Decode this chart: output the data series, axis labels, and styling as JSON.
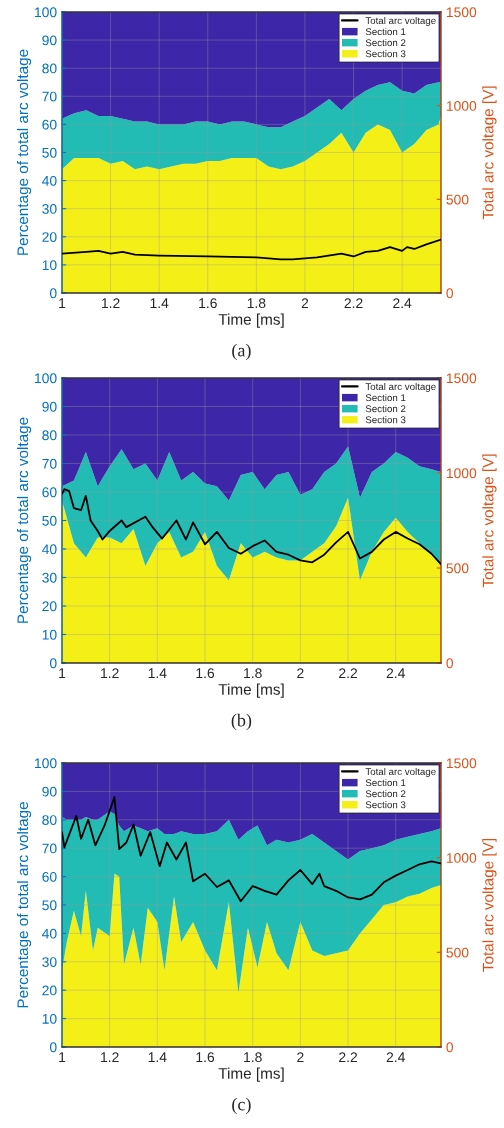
{
  "chart_data": [
    {
      "type": "area",
      "stacked": true,
      "xlabel": "Time [ms]",
      "ylabel": "Percentage of total arc voltage",
      "y2label": "Total arc voltage [V]",
      "annotations": [
        "(a)"
      ],
      "x": [
        1.0,
        1.05,
        1.1,
        1.15,
        1.2,
        1.25,
        1.3,
        1.35,
        1.4,
        1.45,
        1.5,
        1.55,
        1.6,
        1.65,
        1.7,
        1.75,
        1.8,
        1.85,
        1.9,
        1.95,
        2.0,
        2.05,
        2.1,
        2.15,
        2.2,
        2.25,
        2.3,
        2.35,
        2.4,
        2.45,
        2.5,
        2.55,
        2.56
      ],
      "xlim": [
        1,
        2.56
      ],
      "xticks": [
        1,
        1.2,
        1.4,
        1.6,
        1.8,
        2,
        2.2,
        2.4
      ],
      "ylim": [
        0,
        100
      ],
      "yticks": [
        0,
        10,
        20,
        30,
        40,
        50,
        60,
        70,
        80,
        90,
        100
      ],
      "y2lim": [
        0,
        1500
      ],
      "y2ticks": [
        0,
        500,
        1000,
        1500
      ],
      "grid": true,
      "legend": "top right",
      "series": [
        {
          "name": "Section 3",
          "color": "#f5ef18",
          "values": [
            44,
            48,
            48,
            48,
            46,
            47,
            44,
            45,
            44,
            45,
            46,
            46,
            47,
            47,
            48,
            48,
            48,
            45,
            44,
            45,
            47,
            50,
            53,
            57,
            50,
            57,
            60,
            58,
            50,
            53,
            58,
            60,
            63
          ]
        },
        {
          "name": "Section 2",
          "color": "#22bcb4",
          "values": [
            18,
            16,
            17,
            15,
            17,
            15,
            17,
            16,
            16,
            15,
            14,
            15,
            14,
            13,
            13,
            13,
            12,
            14,
            15,
            16,
            16,
            16,
            16,
            8,
            19,
            15,
            14,
            17,
            22,
            18,
            16,
            15,
            12
          ]
        },
        {
          "name": "Section 1",
          "color": "#3e26a8",
          "values": [
            38,
            36,
            35,
            37,
            37,
            38,
            39,
            39,
            40,
            40,
            40,
            39,
            39,
            40,
            39,
            39,
            40,
            41,
            41,
            39,
            37,
            34,
            31,
            35,
            31,
            28,
            26,
            25,
            28,
            29,
            26,
            25,
            25
          ]
        },
        {
          "name": "Total arc voltage",
          "type": "line",
          "axis": "y2",
          "color": "#000000",
          "x": [
            1,
            1.1,
            1.15,
            1.2,
            1.25,
            1.3,
            1.4,
            1.6,
            1.8,
            1.9,
            1.95,
            2.05,
            2.15,
            2.2,
            2.25,
            2.3,
            2.35,
            2.4,
            2.42,
            2.45,
            2.5,
            2.56
          ],
          "values": [
            210,
            220,
            225,
            210,
            220,
            205,
            200,
            195,
            190,
            180,
            180,
            190,
            210,
            195,
            220,
            225,
            245,
            225,
            245,
            235,
            260,
            285
          ]
        }
      ]
    },
    {
      "type": "area",
      "stacked": true,
      "xlabel": "Time [ms]",
      "ylabel": "Percentage of total arc voltage",
      "y2label": "Total arc voltage [V]",
      "annotations": [
        "(b)"
      ],
      "x": [
        1.0,
        1.05,
        1.1,
        1.15,
        1.2,
        1.25,
        1.3,
        1.35,
        1.4,
        1.45,
        1.5,
        1.55,
        1.6,
        1.65,
        1.7,
        1.75,
        1.8,
        1.85,
        1.9,
        1.95,
        2.0,
        2.05,
        2.1,
        2.15,
        2.2,
        2.25,
        2.3,
        2.35,
        2.4,
        2.45,
        2.5,
        2.55,
        2.59
      ],
      "xlim": [
        1,
        2.59
      ],
      "xticks": [
        1,
        1.2,
        1.4,
        1.6,
        1.8,
        2,
        2.2,
        2.4
      ],
      "ylim": [
        0,
        100
      ],
      "yticks": [
        0,
        10,
        20,
        30,
        40,
        50,
        60,
        70,
        80,
        90,
        100
      ],
      "y2lim": [
        0,
        1500
      ],
      "y2ticks": [
        0,
        500,
        1000,
        1500
      ],
      "grid": true,
      "legend": "top right",
      "series": [
        {
          "name": "Section 3",
          "color": "#f5ef18",
          "values": [
            57,
            42,
            37,
            44,
            44,
            42,
            47,
            34,
            42,
            46,
            37,
            39,
            46,
            34,
            29,
            42,
            37,
            39,
            37,
            36,
            36,
            39,
            42,
            48,
            58,
            29,
            39,
            46,
            51,
            46,
            42,
            38,
            34
          ]
        },
        {
          "name": "Section 2",
          "color": "#22bcb4",
          "values": [
            5,
            22,
            37,
            18,
            25,
            33,
            21,
            36,
            22,
            28,
            27,
            28,
            17,
            28,
            28,
            24,
            30,
            22,
            29,
            31,
            23,
            22,
            25,
            22,
            18,
            29,
            28,
            24,
            23,
            26,
            27,
            30,
            33
          ]
        },
        {
          "name": "Section 1",
          "color": "#3e26a8",
          "values": [
            38,
            36,
            26,
            38,
            31,
            25,
            32,
            30,
            36,
            26,
            36,
            33,
            37,
            38,
            43,
            34,
            33,
            39,
            34,
            33,
            41,
            39,
            33,
            30,
            24,
            42,
            33,
            30,
            26,
            28,
            31,
            32,
            33
          ]
        },
        {
          "name": "Total arc voltage",
          "type": "line",
          "axis": "y2",
          "color": "#000000",
          "x": [
            1,
            1.01,
            1.03,
            1.05,
            1.08,
            1.1,
            1.12,
            1.15,
            1.17,
            1.2,
            1.25,
            1.27,
            1.35,
            1.38,
            1.42,
            1.48,
            1.52,
            1.55,
            1.6,
            1.65,
            1.7,
            1.75,
            1.8,
            1.85,
            1.9,
            1.95,
            2.0,
            2.05,
            2.1,
            2.15,
            2.2,
            2.25,
            2.3,
            2.35,
            2.4,
            2.45,
            2.5,
            2.55,
            2.59
          ],
          "values": [
            890,
            915,
            905,
            815,
            805,
            880,
            750,
            695,
            650,
            695,
            750,
            715,
            770,
            715,
            655,
            750,
            650,
            740,
            625,
            690,
            605,
            575,
            615,
            645,
            585,
            570,
            540,
            530,
            570,
            635,
            690,
            550,
            585,
            650,
            690,
            655,
            625,
            575,
            520
          ]
        }
      ]
    },
    {
      "type": "area",
      "stacked": true,
      "xlabel": "Time [ms]",
      "ylabel": "Percentage of total arc voltage",
      "y2label": "Total arc voltage [V]",
      "annotations": [
        "(c)"
      ],
      "x": [
        1.0,
        1.02,
        1.05,
        1.08,
        1.1,
        1.13,
        1.15,
        1.2,
        1.22,
        1.24,
        1.26,
        1.3,
        1.33,
        1.36,
        1.4,
        1.43,
        1.47,
        1.5,
        1.55,
        1.6,
        1.65,
        1.7,
        1.74,
        1.78,
        1.82,
        1.86,
        1.9,
        1.95,
        2.0,
        2.05,
        2.1,
        2.15,
        2.2,
        2.25,
        2.3,
        2.35,
        2.4,
        2.45,
        2.5,
        2.55,
        2.59
      ],
      "xlim": [
        1,
        2.59
      ],
      "xticks": [
        1,
        1.2,
        1.4,
        1.6,
        1.8,
        2,
        2.2,
        2.4
      ],
      "ylim": [
        0,
        100
      ],
      "yticks": [
        0,
        10,
        20,
        30,
        40,
        50,
        60,
        70,
        80,
        90,
        100
      ],
      "y2lim": [
        0,
        1500
      ],
      "y2ticks": [
        0,
        500,
        1000,
        1500
      ],
      "grid": true,
      "legend": "top right",
      "series": [
        {
          "name": "Section 3",
          "color": "#f5ef18",
          "values": [
            27,
            37,
            48,
            39,
            55,
            34,
            42,
            39,
            61,
            60,
            29,
            42,
            29,
            49,
            44,
            27,
            53,
            37,
            44,
            34,
            27,
            51,
            19,
            42,
            28,
            44,
            33,
            27,
            44,
            34,
            32,
            33,
            34,
            40,
            45,
            50,
            51,
            53,
            54,
            56,
            57
          ]
        },
        {
          "name": "Section 2",
          "color": "#22bcb4",
          "values": [
            54,
            43,
            32,
            41,
            26,
            46,
            38,
            44,
            21,
            18,
            47,
            36,
            48,
            27,
            33,
            48,
            22,
            39,
            31,
            41,
            49,
            29,
            54,
            34,
            50,
            27,
            40,
            45,
            29,
            41,
            40,
            36,
            32,
            29,
            25,
            21,
            22,
            21,
            21,
            20,
            20
          ]
        },
        {
          "name": "Section 1",
          "color": "#3e26a8",
          "values": [
            19,
            20,
            20,
            20,
            19,
            20,
            20,
            17,
            18,
            22,
            24,
            22,
            23,
            24,
            23,
            25,
            25,
            24,
            25,
            25,
            24,
            20,
            27,
            24,
            22,
            29,
            27,
            28,
            27,
            25,
            28,
            31,
            34,
            31,
            30,
            29,
            27,
            26,
            25,
            24,
            23
          ]
        },
        {
          "name": "Total arc voltage",
          "type": "line",
          "axis": "y2",
          "color": "#000000",
          "x": [
            1.0,
            1.01,
            1.04,
            1.06,
            1.08,
            1.11,
            1.14,
            1.18,
            1.22,
            1.24,
            1.27,
            1.3,
            1.33,
            1.37,
            1.41,
            1.44,
            1.48,
            1.52,
            1.55,
            1.6,
            1.65,
            1.7,
            1.75,
            1.8,
            1.85,
            1.9,
            1.95,
            2.0,
            2.05,
            2.08,
            2.1,
            2.15,
            2.2,
            2.25,
            2.3,
            2.35,
            2.4,
            2.45,
            2.5,
            2.55,
            2.59
          ],
          "values": [
            1135,
            1055,
            1155,
            1220,
            1100,
            1200,
            1065,
            1175,
            1320,
            1045,
            1080,
            1175,
            1010,
            1135,
            955,
            1080,
            990,
            1080,
            875,
            915,
            845,
            880,
            770,
            850,
            825,
            805,
            880,
            935,
            860,
            915,
            850,
            825,
            790,
            780,
            805,
            870,
            905,
            935,
            965,
            980,
            970
          ]
        }
      ]
    }
  ]
}
